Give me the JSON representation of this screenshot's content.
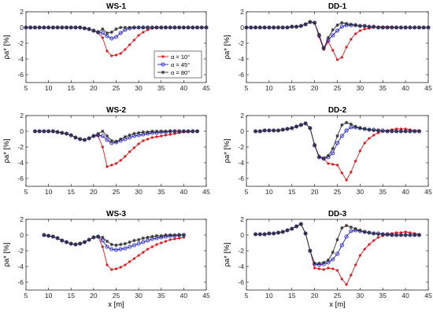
{
  "colors": {
    "alpha10": "#e41a1c",
    "alpha45": "#2222cc",
    "alpha80": "#333333",
    "axis": "#262626",
    "grid": "#d9d9d9"
  },
  "chart_data": [
    {
      "type": "line",
      "title": "WS-1",
      "xlabel": "",
      "ylabel": "ρa* [%]",
      "xlim": [
        5,
        45
      ],
      "ylim": [
        -7,
        2
      ],
      "xticks": [
        "5",
        "10",
        "15",
        "20",
        "25",
        "30",
        "35",
        "40",
        "45"
      ],
      "yticks": [
        "2",
        "0",
        "-2",
        "-4",
        "-6"
      ],
      "grid": false,
      "legend": "inside",
      "x": [
        5,
        6,
        7,
        8,
        9,
        10,
        11,
        12,
        13,
        14,
        15,
        16,
        17,
        18,
        19,
        20,
        21,
        22,
        23,
        24,
        25,
        26,
        27,
        28,
        29,
        30,
        31,
        32,
        33,
        34,
        35,
        36,
        37,
        38,
        39,
        40,
        41,
        42,
        43,
        44,
        45
      ],
      "series": [
        {
          "name": "α = 10°",
          "color": "#e41a1c",
          "marker": "dot",
          "values": [
            0,
            0,
            0,
            0,
            0,
            0,
            0,
            0,
            0,
            0,
            0,
            0,
            0,
            -0.1,
            -0.2,
            -0.4,
            -0.7,
            -1.3,
            -3.0,
            -3.6,
            -3.5,
            -3.3,
            -2.8,
            -2.2,
            -1.6,
            -1.0,
            -0.6,
            -0.3,
            -0.1,
            0,
            0,
            0,
            0,
            0,
            0,
            0,
            0,
            0,
            0,
            0,
            0
          ]
        },
        {
          "name": "α = 45°",
          "color": "#2222cc",
          "marker": "circle",
          "values": [
            0,
            0,
            0,
            0,
            0,
            0,
            0,
            0,
            0,
            0,
            0,
            0,
            0,
            -0.1,
            -0.2,
            -0.4,
            -0.6,
            -0.7,
            -1.1,
            -1.4,
            -1.2,
            -0.7,
            -0.3,
            -0.1,
            0,
            0,
            0,
            0,
            0,
            0,
            0,
            0,
            0,
            0,
            0,
            0,
            0,
            0,
            0,
            0,
            0
          ]
        },
        {
          "name": "α = 80°",
          "color": "#333333",
          "marker": "star",
          "values": [
            0,
            0,
            0,
            0,
            0,
            0,
            0,
            0,
            0,
            0,
            0,
            0,
            0,
            -0.1,
            -0.2,
            -0.4,
            -0.6,
            -0.2,
            -0.7,
            -0.6,
            -0.2,
            0,
            0,
            0,
            0,
            0,
            0,
            0,
            0,
            0,
            0,
            0,
            0,
            0,
            0,
            0,
            0,
            0,
            0,
            0,
            0
          ]
        }
      ]
    },
    {
      "type": "line",
      "title": "DD-1",
      "xlabel": "",
      "ylabel": "ρa* [%]",
      "xlim": [
        5,
        45
      ],
      "ylim": [
        -7,
        2
      ],
      "xticks": [
        "5",
        "10",
        "15",
        "20",
        "25",
        "30",
        "35",
        "40",
        "45"
      ],
      "yticks": [
        "2",
        "0",
        "-2",
        "-4",
        "-6"
      ],
      "grid": false,
      "x": [
        5,
        6,
        7,
        8,
        9,
        10,
        11,
        12,
        13,
        14,
        15,
        16,
        17,
        18,
        19,
        20,
        21,
        22,
        23,
        24,
        25,
        26,
        27,
        28,
        29,
        30,
        31,
        32,
        33,
        34,
        35,
        36,
        37,
        38,
        39,
        40,
        41,
        42,
        43,
        44,
        45
      ],
      "series": [
        {
          "name": "α = 10°",
          "color": "#e41a1c",
          "marker": "dot",
          "values": [
            0,
            0,
            0,
            0,
            0,
            0,
            0,
            0,
            0,
            0,
            0.1,
            0.1,
            0.2,
            0.4,
            0.7,
            0.6,
            -1.2,
            -2.8,
            -1.8,
            -2.9,
            -4.1,
            -3.8,
            -2.5,
            -1.5,
            -0.8,
            -0.4,
            -0.2,
            -0.1,
            0,
            0.1,
            0.1,
            0.1,
            0.1,
            0,
            0,
            0,
            0,
            0,
            0,
            0,
            0
          ]
        },
        {
          "name": "α = 45°",
          "color": "#2222cc",
          "marker": "circle",
          "values": [
            0,
            0,
            0,
            0,
            0,
            0,
            0,
            0,
            0,
            0,
            0.1,
            0.1,
            0.2,
            0.4,
            0.7,
            0.6,
            -1.0,
            -2.6,
            -1.6,
            -1.0,
            -0.4,
            0.1,
            0.3,
            0.3,
            0.3,
            0.2,
            0.2,
            0.1,
            0.1,
            0,
            0,
            0,
            0,
            0,
            0,
            0,
            0,
            0,
            0,
            0,
            0
          ]
        },
        {
          "name": "α = 80°",
          "color": "#333333",
          "marker": "star",
          "values": [
            0,
            0,
            0,
            0,
            0,
            0,
            0,
            0,
            0,
            0,
            0.1,
            0.1,
            0.2,
            0.4,
            0.7,
            0.6,
            -0.9,
            -2.7,
            -1.3,
            -0.3,
            0.3,
            0.6,
            0.5,
            0.4,
            0.3,
            0.2,
            0.2,
            0.1,
            0.1,
            0,
            0,
            0,
            0,
            0,
            0,
            0,
            0,
            0,
            0,
            0,
            0
          ]
        }
      ]
    },
    {
      "type": "line",
      "title": "WS-2",
      "xlabel": "",
      "ylabel": "ρa* [%]",
      "xlim": [
        5,
        45
      ],
      "ylim": [
        -7,
        2
      ],
      "xticks": [
        "5",
        "10",
        "15",
        "20",
        "25",
        "30",
        "35",
        "40",
        "45"
      ],
      "yticks": [
        "2",
        "0",
        "-2",
        "-4",
        "-6"
      ],
      "grid": false,
      "x": [
        7,
        8,
        9,
        10,
        11,
        12,
        13,
        14,
        15,
        16,
        17,
        18,
        19,
        20,
        21,
        22,
        23,
        24,
        25,
        26,
        27,
        28,
        29,
        30,
        31,
        32,
        33,
        34,
        35,
        36,
        37,
        38,
        39,
        40,
        41,
        42,
        43
      ],
      "series": [
        {
          "name": "α = 10°",
          "color": "#e41a1c",
          "marker": "dot",
          "values": [
            0,
            0,
            0,
            0,
            0,
            -0.1,
            -0.2,
            -0.3,
            -0.5,
            -0.8,
            -1.0,
            -1.1,
            -0.9,
            -0.6,
            -0.6,
            -2.0,
            -4.5,
            -4.3,
            -4.1,
            -3.7,
            -3.2,
            -2.6,
            -2.1,
            -1.6,
            -1.2,
            -1.0,
            -0.8,
            -0.7,
            -0.6,
            -0.5,
            -0.4,
            -0.3,
            -0.2,
            -0.1,
            -0.1,
            0,
            0
          ]
        },
        {
          "name": "α = 45°",
          "color": "#2222cc",
          "marker": "circle",
          "values": [
            0,
            0,
            0,
            0,
            0,
            -0.1,
            -0.2,
            -0.3,
            -0.5,
            -0.8,
            -1.0,
            -1.1,
            -0.9,
            -0.6,
            -0.5,
            -0.6,
            -1.1,
            -1.5,
            -1.4,
            -1.2,
            -1.0,
            -0.8,
            -0.6,
            -0.5,
            -0.4,
            -0.3,
            -0.2,
            -0.2,
            -0.1,
            -0.1,
            0,
            0,
            0,
            0,
            0,
            0,
            0
          ]
        },
        {
          "name": "α = 80°",
          "color": "#333333",
          "marker": "star",
          "values": [
            0,
            0,
            0,
            0,
            0,
            -0.1,
            -0.2,
            -0.3,
            -0.5,
            -0.8,
            -1.0,
            -1.1,
            -0.9,
            -0.6,
            -0.3,
            0,
            -0.6,
            -1.2,
            -1.3,
            -1.0,
            -0.7,
            -0.5,
            -0.3,
            -0.2,
            -0.1,
            -0.1,
            0,
            0,
            0,
            0,
            0,
            0,
            0,
            0,
            0,
            0,
            0
          ]
        }
      ]
    },
    {
      "type": "line",
      "title": "DD-2",
      "xlabel": "",
      "ylabel": "ρa* [%]",
      "xlim": [
        5,
        45
      ],
      "ylim": [
        -7,
        2
      ],
      "xticks": [
        "5",
        "10",
        "15",
        "20",
        "25",
        "30",
        "35",
        "40",
        "45"
      ],
      "yticks": [
        "2",
        "0",
        "-2",
        "-4",
        "-6"
      ],
      "grid": false,
      "x": [
        7,
        8,
        9,
        10,
        11,
        12,
        13,
        14,
        15,
        16,
        17,
        18,
        19,
        20,
        21,
        22,
        23,
        24,
        25,
        26,
        27,
        28,
        29,
        30,
        31,
        32,
        33,
        34,
        35,
        36,
        37,
        38,
        39,
        40,
        41,
        42,
        43
      ],
      "series": [
        {
          "name": "α = 10°",
          "color": "#e41a1c",
          "marker": "dot",
          "values": [
            0,
            0,
            0.1,
            0.1,
            0.1,
            0.1,
            0.2,
            0.3,
            0.4,
            0.6,
            0.8,
            1.0,
            0.4,
            -1.8,
            -3.3,
            -3.5,
            -4.1,
            -4.2,
            -4.3,
            -5.3,
            -6.2,
            -5.2,
            -3.8,
            -2.5,
            -1.5,
            -0.9,
            -0.5,
            -0.2,
            0,
            0.1,
            0.2,
            0.3,
            0.3,
            0.3,
            0.2,
            0.1,
            0.1
          ]
        },
        {
          "name": "α = 45°",
          "color": "#2222cc",
          "marker": "circle",
          "values": [
            0,
            0,
            0.1,
            0.1,
            0.1,
            0.1,
            0.2,
            0.3,
            0.4,
            0.6,
            0.8,
            1.0,
            0.4,
            -1.8,
            -3.3,
            -3.5,
            -3.3,
            -2.8,
            -1.5,
            -0.6,
            0.1,
            0.5,
            0.5,
            0.4,
            0.3,
            0.2,
            0.2,
            0.1,
            0.1,
            0,
            0,
            0,
            0,
            0,
            0,
            0,
            0
          ]
        },
        {
          "name": "α = 80°",
          "color": "#333333",
          "marker": "star",
          "values": [
            0,
            0,
            0.1,
            0.1,
            0.1,
            0.1,
            0.2,
            0.3,
            0.4,
            0.6,
            0.8,
            1.0,
            0.4,
            -1.7,
            -3.2,
            -3.4,
            -3.1,
            -2.2,
            -0.6,
            0.8,
            1.1,
            0.9,
            0.6,
            0.4,
            0.3,
            0.2,
            0.1,
            0.1,
            0,
            0,
            0,
            0,
            0,
            0,
            0,
            0,
            0
          ]
        }
      ]
    },
    {
      "type": "line",
      "title": "WS-3",
      "xlabel": "x [m]",
      "ylabel": "ρa* [%]",
      "xlim": [
        5,
        45
      ],
      "ylim": [
        -7,
        2
      ],
      "xticks": [
        "5",
        "10",
        "15",
        "20",
        "25",
        "30",
        "35",
        "40",
        "45"
      ],
      "yticks": [
        "2",
        "0",
        "-2",
        "-4",
        "-6"
      ],
      "grid": false,
      "x": [
        9,
        10,
        11,
        12,
        13,
        14,
        15,
        16,
        17,
        18,
        19,
        20,
        21,
        22,
        23,
        24,
        25,
        26,
        27,
        28,
        29,
        30,
        31,
        32,
        33,
        34,
        35,
        36,
        37,
        38,
        39,
        40
      ],
      "series": [
        {
          "name": "α = 10°",
          "color": "#e41a1c",
          "marker": "dot",
          "values": [
            0,
            -0.1,
            -0.2,
            -0.4,
            -0.7,
            -0.9,
            -1.1,
            -1.2,
            -1.1,
            -0.9,
            -0.6,
            -0.3,
            -0.2,
            -1.5,
            -3.8,
            -4.4,
            -4.3,
            -4.1,
            -3.8,
            -3.4,
            -3.0,
            -2.6,
            -2.2,
            -1.8,
            -1.5,
            -1.2,
            -1.0,
            -0.8,
            -0.6,
            -0.5,
            -0.4,
            -0.3
          ]
        },
        {
          "name": "α = 45°",
          "color": "#2222cc",
          "marker": "circle",
          "values": [
            0,
            -0.1,
            -0.2,
            -0.4,
            -0.7,
            -0.9,
            -1.1,
            -1.2,
            -1.1,
            -0.9,
            -0.6,
            -0.3,
            -0.2,
            -0.7,
            -1.5,
            -1.8,
            -1.9,
            -1.8,
            -1.7,
            -1.5,
            -1.3,
            -1.1,
            -0.9,
            -0.7,
            -0.5,
            -0.4,
            -0.3,
            -0.2,
            -0.1,
            -0.1,
            0,
            0
          ]
        },
        {
          "name": "α = 80°",
          "color": "#333333",
          "marker": "star",
          "values": [
            0,
            -0.1,
            -0.2,
            -0.4,
            -0.7,
            -0.9,
            -1.1,
            -1.2,
            -1.1,
            -0.9,
            -0.6,
            -0.3,
            -0.2,
            -0.3,
            -0.8,
            -1.2,
            -1.3,
            -1.2,
            -1.1,
            -0.9,
            -0.7,
            -0.6,
            -0.4,
            -0.3,
            -0.2,
            -0.1,
            -0.1,
            0,
            0,
            0,
            0,
            0
          ]
        }
      ]
    },
    {
      "type": "line",
      "title": "DD-3",
      "xlabel": "x [m]",
      "ylabel": "ρa* [%]",
      "xlim": [
        5,
        45
      ],
      "ylim": [
        -7,
        2
      ],
      "xticks": [
        "5",
        "10",
        "15",
        "20",
        "25",
        "30",
        "35",
        "40",
        "45"
      ],
      "yticks": [
        "2",
        "0",
        "-2",
        "-4",
        "-6"
      ],
      "grid": false,
      "x": [
        7,
        8,
        9,
        10,
        11,
        12,
        13,
        14,
        15,
        16,
        17,
        18,
        19,
        20,
        21,
        22,
        23,
        24,
        25,
        26,
        27,
        28,
        29,
        30,
        31,
        32,
        33,
        34,
        35,
        36,
        37,
        38,
        39,
        40,
        41,
        42,
        43
      ],
      "series": [
        {
          "name": "α = 10°",
          "color": "#e41a1c",
          "marker": "dot",
          "values": [
            0.1,
            0.1,
            0.1,
            0.2,
            0.2,
            0.3,
            0.4,
            0.6,
            0.8,
            1.1,
            1.4,
            0.2,
            -2.0,
            -4.2,
            -4.3,
            -4.4,
            -4.2,
            -4.3,
            -4.5,
            -5.6,
            -6.3,
            -5.1,
            -3.8,
            -2.6,
            -1.8,
            -1.2,
            -0.7,
            -0.3,
            -0.1,
            0.1,
            0.2,
            0.3,
            0.3,
            0.4,
            0.3,
            0.2,
            0.1
          ]
        },
        {
          "name": "α = 45°",
          "color": "#2222cc",
          "marker": "circle",
          "values": [
            0.1,
            0.1,
            0.1,
            0.2,
            0.2,
            0.3,
            0.4,
            0.6,
            0.8,
            1.1,
            1.4,
            0.2,
            -2.0,
            -3.7,
            -3.8,
            -3.7,
            -3.5,
            -3.1,
            -2.4,
            -1.3,
            -0.2,
            0.5,
            0.6,
            0.5,
            0.4,
            0.3,
            0.2,
            0.2,
            0.1,
            0.1,
            0,
            0,
            0,
            0,
            0,
            0,
            0
          ]
        },
        {
          "name": "α = 80°",
          "color": "#333333",
          "marker": "star",
          "values": [
            0.1,
            0.1,
            0.1,
            0.2,
            0.2,
            0.3,
            0.4,
            0.6,
            0.8,
            1.1,
            1.4,
            0.2,
            -2.0,
            -3.6,
            -3.6,
            -3.5,
            -3.2,
            -2.2,
            -0.6,
            0.9,
            1.2,
            1.0,
            0.8,
            0.6,
            0.4,
            0.3,
            0.2,
            0.1,
            0.1,
            0,
            0,
            0,
            0,
            0,
            0,
            0,
            0
          ]
        }
      ]
    }
  ]
}
